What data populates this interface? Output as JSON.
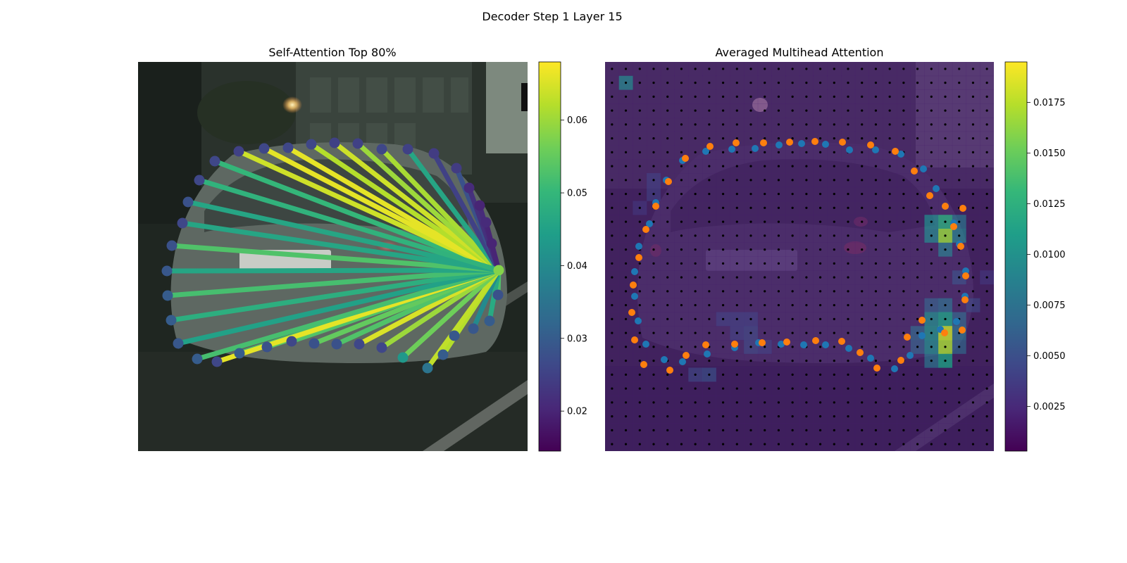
{
  "figure": {
    "suptitle": "Decoder Step 1 Layer 15"
  },
  "colors": {
    "viridis": [
      "#440154",
      "#482878",
      "#3e4989",
      "#31688e",
      "#26828e",
      "#1f9e89",
      "#35b779",
      "#6ece58",
      "#b5de2b",
      "#fde725"
    ],
    "pred_points": "#1f77b4",
    "gt_points": "#ff7f0e",
    "grid_dots": "#000000"
  },
  "chart_data": [
    {
      "type": "network",
      "title": "Self-Attention Top 80%",
      "background": "photograph of the rear of a silver car on a street",
      "colorbar": {
        "min": 0.0145,
        "max": 0.068,
        "ticks": [
          "0.02",
          "0.03",
          "0.04",
          "0.05",
          "0.06"
        ]
      },
      "source_point": {
        "x": 708,
        "y": 384,
        "value": 0.058
      },
      "points": [
        {
          "x": 305,
          "y": 229,
          "value": 0.026,
          "edge": 0.05
        },
        {
          "x": 339,
          "y": 215,
          "value": 0.025,
          "edge": 0.064
        },
        {
          "x": 375,
          "y": 211,
          "value": 0.026,
          "edge": 0.066
        },
        {
          "x": 409,
          "y": 210,
          "value": 0.026,
          "edge": 0.066
        },
        {
          "x": 442,
          "y": 205,
          "value": 0.026,
          "edge": 0.062
        },
        {
          "x": 475,
          "y": 203,
          "value": 0.025,
          "edge": 0.064
        },
        {
          "x": 508,
          "y": 204,
          "value": 0.025,
          "edge": 0.06
        },
        {
          "x": 542,
          "y": 212,
          "value": 0.026,
          "edge": 0.061
        },
        {
          "x": 579,
          "y": 212,
          "value": 0.025,
          "edge": 0.046
        },
        {
          "x": 616,
          "y": 218,
          "value": 0.024,
          "edge": 0.025
        },
        {
          "x": 648,
          "y": 239,
          "value": 0.024,
          "edge": 0.028
        },
        {
          "x": 666,
          "y": 267,
          "value": 0.021,
          "edge": 0.022
        },
        {
          "x": 681,
          "y": 292,
          "value": 0.02,
          "edge": 0.021
        },
        {
          "x": 690,
          "y": 316,
          "value": 0.021,
          "edge": 0.02
        },
        {
          "x": 698,
          "y": 346,
          "value": 0.02,
          "edge": 0.02
        },
        {
          "x": 707,
          "y": 419,
          "value": 0.028,
          "edge": 0.053
        },
        {
          "x": 695,
          "y": 456,
          "value": 0.03,
          "edge": 0.047
        },
        {
          "x": 672,
          "y": 467,
          "value": 0.029,
          "edge": 0.04
        },
        {
          "x": 645,
          "y": 477,
          "value": 0.029,
          "edge": 0.046
        },
        {
          "x": 629,
          "y": 504,
          "value": 0.03,
          "edge": 0.062
        },
        {
          "x": 607,
          "y": 523,
          "value": 0.035,
          "edge": 0.063
        },
        {
          "x": 572,
          "y": 508,
          "value": 0.043,
          "edge": 0.056
        },
        {
          "x": 542,
          "y": 494,
          "value": 0.026,
          "edge": 0.06
        },
        {
          "x": 510,
          "y": 489,
          "value": 0.026,
          "edge": 0.065
        },
        {
          "x": 478,
          "y": 489,
          "value": 0.028,
          "edge": 0.053
        },
        {
          "x": 446,
          "y": 488,
          "value": 0.028,
          "edge": 0.055
        },
        {
          "x": 414,
          "y": 485,
          "value": 0.026,
          "edge": 0.053
        },
        {
          "x": 379,
          "y": 493,
          "value": 0.028,
          "edge": 0.054
        },
        {
          "x": 340,
          "y": 502,
          "value": 0.03,
          "edge": 0.052
        },
        {
          "x": 308,
          "y": 514,
          "value": 0.026,
          "edge": 0.066
        },
        {
          "x": 280,
          "y": 510,
          "value": 0.03,
          "edge": 0.052
        },
        {
          "x": 253,
          "y": 488,
          "value": 0.029,
          "edge": 0.045
        },
        {
          "x": 243,
          "y": 455,
          "value": 0.03,
          "edge": 0.048
        },
        {
          "x": 238,
          "y": 420,
          "value": 0.03,
          "edge": 0.052
        },
        {
          "x": 237,
          "y": 385,
          "value": 0.029,
          "edge": 0.046
        },
        {
          "x": 244,
          "y": 349,
          "value": 0.028,
          "edge": 0.053
        },
        {
          "x": 259,
          "y": 317,
          "value": 0.026,
          "edge": 0.046
        },
        {
          "x": 267,
          "y": 287,
          "value": 0.028,
          "edge": 0.046
        },
        {
          "x": 283,
          "y": 256,
          "value": 0.026,
          "edge": 0.049
        }
      ]
    },
    {
      "type": "heatmap",
      "title": "Averaged Multihead Attention",
      "background": "darkened photograph of the same car with attention overlay",
      "colorbar": {
        "min": 0.0003,
        "max": 0.0195,
        "ticks": [
          "0.0025",
          "0.0050",
          "0.0075",
          "0.0100",
          "0.0125",
          "0.0150",
          "0.0175"
        ]
      },
      "grid": {
        "rows": 28,
        "cols": 28,
        "base_value": 0.0018
      },
      "hot_cells": [
        {
          "row": 1,
          "col": 1,
          "value": 0.0085
        },
        {
          "row": 11,
          "col": 23,
          "value": 0.009
        },
        {
          "row": 11,
          "col": 24,
          "value": 0.012
        },
        {
          "row": 11,
          "col": 25,
          "value": 0.007
        },
        {
          "row": 12,
          "col": 23,
          "value": 0.0085
        },
        {
          "row": 12,
          "col": 24,
          "value": 0.0165
        },
        {
          "row": 12,
          "col": 25,
          "value": 0.008
        },
        {
          "row": 13,
          "col": 24,
          "value": 0.0075
        },
        {
          "row": 15,
          "col": 25,
          "value": 0.0045
        },
        {
          "row": 17,
          "col": 23,
          "value": 0.0055
        },
        {
          "row": 17,
          "col": 24,
          "value": 0.0065
        },
        {
          "row": 18,
          "col": 23,
          "value": 0.009
        },
        {
          "row": 18,
          "col": 24,
          "value": 0.011
        },
        {
          "row": 18,
          "col": 25,
          "value": 0.006
        },
        {
          "row": 19,
          "col": 22,
          "value": 0.006
        },
        {
          "row": 19,
          "col": 23,
          "value": 0.0095
        },
        {
          "row": 19,
          "col": 24,
          "value": 0.018
        },
        {
          "row": 19,
          "col": 25,
          "value": 0.007
        },
        {
          "row": 20,
          "col": 22,
          "value": 0.0055
        },
        {
          "row": 20,
          "col": 23,
          "value": 0.009
        },
        {
          "row": 20,
          "col": 24,
          "value": 0.017
        },
        {
          "row": 20,
          "col": 25,
          "value": 0.006
        },
        {
          "row": 21,
          "col": 23,
          "value": 0.007
        },
        {
          "row": 21,
          "col": 24,
          "value": 0.011
        },
        {
          "row": 18,
          "col": 8,
          "value": 0.0035
        },
        {
          "row": 18,
          "col": 9,
          "value": 0.0035
        },
        {
          "row": 18,
          "col": 10,
          "value": 0.0035
        },
        {
          "row": 19,
          "col": 9,
          "value": 0.0035
        },
        {
          "row": 19,
          "col": 10,
          "value": 0.004
        },
        {
          "row": 20,
          "col": 10,
          "value": 0.004
        },
        {
          "row": 20,
          "col": 11,
          "value": 0.0035
        },
        {
          "row": 22,
          "col": 6,
          "value": 0.004
        },
        {
          "row": 22,
          "col": 7,
          "value": 0.0045
        },
        {
          "row": 8,
          "col": 3,
          "value": 0.0035
        },
        {
          "row": 9,
          "col": 3,
          "value": 0.0035
        },
        {
          "row": 10,
          "col": 2,
          "value": 0.003
        },
        {
          "row": 15,
          "col": 27,
          "value": 0.003
        },
        {
          "row": 17,
          "col": 26,
          "value": 0.004
        }
      ],
      "pred_points": [
        [
          969,
          228
        ],
        [
          1002,
          215
        ],
        [
          1039,
          212
        ],
        [
          1072,
          211
        ],
        [
          1106,
          206
        ],
        [
          1138,
          204
        ],
        [
          1172,
          205
        ],
        [
          1206,
          213
        ],
        [
          1243,
          213
        ],
        [
          1279,
          219
        ],
        [
          1311,
          240
        ],
        [
          1329,
          268
        ],
        [
          1342,
          293
        ],
        [
          1354,
          317
        ],
        [
          1362,
          347
        ],
        [
          1371,
          385
        ],
        [
          1370,
          421
        ],
        [
          1358,
          457
        ],
        [
          1335,
          468
        ],
        [
          1309,
          477
        ],
        [
          1292,
          505
        ],
        [
          1270,
          524
        ],
        [
          1236,
          509
        ],
        [
          1205,
          495
        ],
        [
          1172,
          490
        ],
        [
          1141,
          490
        ],
        [
          1109,
          489
        ],
        [
          1077,
          487
        ],
        [
          1043,
          494
        ],
        [
          1004,
          503
        ],
        [
          969,
          514
        ],
        [
          943,
          511
        ],
        [
          917,
          489
        ],
        [
          906,
          456
        ],
        [
          901,
          421
        ],
        [
          901,
          386
        ],
        [
          907,
          350
        ],
        [
          922,
          318
        ],
        [
          931,
          288
        ],
        [
          946,
          256
        ]
      ],
      "gt_points": [
        [
          973,
          225
        ],
        [
          1008,
          208
        ],
        [
          1045,
          203
        ],
        [
          1084,
          203
        ],
        [
          1121,
          202
        ],
        [
          1157,
          201
        ],
        [
          1196,
          202
        ],
        [
          1236,
          206
        ],
        [
          1271,
          215
        ],
        [
          1298,
          243
        ],
        [
          1320,
          278
        ],
        [
          1342,
          293
        ],
        [
          1367,
          296
        ],
        [
          1354,
          322
        ],
        [
          1364,
          350
        ],
        [
          1371,
          392
        ],
        [
          1370,
          426
        ],
        [
          1366,
          469
        ],
        [
          1341,
          473
        ],
        [
          1309,
          455
        ],
        [
          1288,
          479
        ],
        [
          1279,
          512
        ],
        [
          1245,
          523
        ],
        [
          1221,
          501
        ],
        [
          1195,
          485
        ],
        [
          1158,
          484
        ],
        [
          1117,
          486
        ],
        [
          1082,
          487
        ],
        [
          1043,
          489
        ],
        [
          1002,
          490
        ],
        [
          974,
          505
        ],
        [
          951,
          526
        ],
        [
          914,
          518
        ],
        [
          901,
          483
        ],
        [
          897,
          444
        ],
        [
          899,
          405
        ],
        [
          907,
          366
        ],
        [
          917,
          326
        ],
        [
          931,
          293
        ],
        [
          949,
          258
        ]
      ]
    }
  ]
}
